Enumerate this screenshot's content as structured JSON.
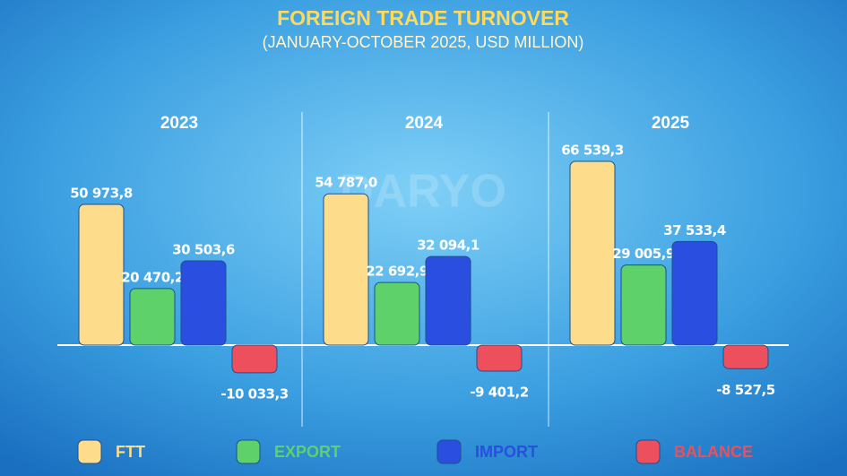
{
  "chart_data": {
    "type": "bar",
    "title": "FOREIGN TRADE TURNOVER",
    "subtitle": "(JANUARY-OCTOBER 2025, USD MILLION)",
    "watermark": "DARYO",
    "categories": [
      "2023",
      "2024",
      "2025"
    ],
    "series": [
      {
        "name": "FTT",
        "color": "#fddc8c",
        "values": [
          50973.8,
          54787.0,
          66539.3
        ],
        "value_labels": [
          "50 973,8",
          "54 787,0",
          "66 539,3"
        ]
      },
      {
        "name": "EXPORT",
        "color": "#5fd16a",
        "values": [
          20470.2,
          22692.9,
          29005.9
        ],
        "value_labels": [
          "20 470,2",
          "22 692,9",
          "29 005,9"
        ]
      },
      {
        "name": "IMPORT",
        "color": "#2a4fe0",
        "values": [
          30503.6,
          32094.1,
          37533.4
        ],
        "value_labels": [
          "30 503,6",
          "32 094,1",
          "37 533,4"
        ]
      },
      {
        "name": "BALANCE",
        "color": "#ee4f5c",
        "values": [
          -10033.3,
          -9401.2,
          -8527.5
        ],
        "value_labels": [
          "-10 033,3",
          "-9 401,2",
          "-8 527,5"
        ]
      }
    ]
  }
}
